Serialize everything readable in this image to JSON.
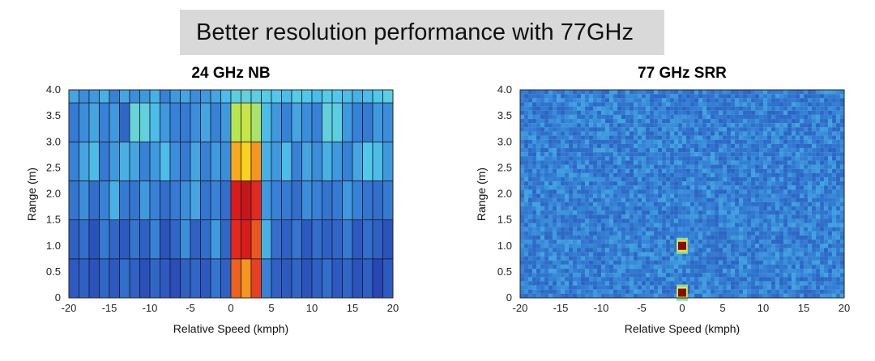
{
  "banner": {
    "text": "Better resolution performance with 77GHz"
  },
  "chart_data": [
    {
      "type": "heatmap",
      "title": "24 GHz NB",
      "xlabel": "Relative Speed (kmph)",
      "ylabel": "Range (m)",
      "xlim": [
        -20,
        20
      ],
      "ylim": [
        0,
        4
      ],
      "xticks": [
        "-20",
        "-15",
        "-10",
        "-5",
        "0",
        "5",
        "10",
        "15",
        "20"
      ],
      "yticks": [
        "0",
        "0.5",
        "1.0",
        "1.5",
        "2.0",
        "2.5",
        "3.0",
        "3.5",
        "4.0"
      ],
      "range_bins": [
        [
          0,
          0.75
        ],
        [
          0.75,
          1.5
        ],
        [
          1.5,
          2.25
        ],
        [
          2.25,
          3.0
        ],
        [
          3.0,
          3.75
        ],
        [
          3.75,
          4.0
        ]
      ],
      "speed_bin_width": 1.25,
      "intensity_scale": [
        0,
        1
      ],
      "intensity_rows": [
        [
          0.18,
          0.2,
          0.16,
          0.22,
          0.18,
          0.24,
          0.2,
          0.15,
          0.22,
          0.18,
          0.14,
          0.2,
          0.22,
          0.18,
          0.26,
          0.2,
          0.85,
          0.8,
          0.88,
          0.3,
          0.2,
          0.18,
          0.22,
          0.16,
          0.2,
          0.24,
          0.18,
          0.22,
          0.16,
          0.2,
          0.12,
          0.18
        ],
        [
          0.2,
          0.24,
          0.16,
          0.28,
          0.22,
          0.18,
          0.26,
          0.2,
          0.3,
          0.16,
          0.22,
          0.32,
          0.2,
          0.24,
          0.34,
          0.22,
          0.9,
          0.92,
          0.86,
          0.38,
          0.24,
          0.2,
          0.26,
          0.18,
          0.24,
          0.2,
          0.22,
          0.28,
          0.18,
          0.24,
          0.2,
          0.16
        ],
        [
          0.26,
          0.32,
          0.24,
          0.3,
          0.38,
          0.28,
          0.26,
          0.34,
          0.3,
          0.24,
          0.28,
          0.32,
          0.36,
          0.26,
          0.3,
          0.24,
          0.92,
          0.94,
          0.9,
          0.34,
          0.3,
          0.28,
          0.24,
          0.32,
          0.3,
          0.26,
          0.28,
          0.34,
          0.3,
          0.26,
          0.24,
          0.28
        ],
        [
          0.3,
          0.36,
          0.4,
          0.28,
          0.34,
          0.38,
          0.36,
          0.3,
          0.34,
          0.4,
          0.32,
          0.28,
          0.36,
          0.3,
          0.34,
          0.32,
          0.78,
          0.74,
          0.8,
          0.38,
          0.34,
          0.4,
          0.3,
          0.36,
          0.32,
          0.38,
          0.34,
          0.3,
          0.36,
          0.42,
          0.4,
          0.34
        ],
        [
          0.28,
          0.32,
          0.36,
          0.3,
          0.34,
          0.22,
          0.5,
          0.48,
          0.4,
          0.34,
          0.3,
          0.28,
          0.32,
          0.36,
          0.3,
          0.34,
          0.62,
          0.64,
          0.6,
          0.4,
          0.34,
          0.3,
          0.36,
          0.32,
          0.3,
          0.48,
          0.46,
          0.34,
          0.3,
          0.28,
          0.34,
          0.32
        ],
        [
          0.36,
          0.32,
          0.34,
          0.38,
          0.3,
          0.36,
          0.32,
          0.34,
          0.38,
          0.3,
          0.34,
          0.36,
          0.32,
          0.34,
          0.36,
          0.4,
          0.46,
          0.48,
          0.46,
          0.44,
          0.42,
          0.4,
          0.44,
          0.42,
          0.4,
          0.44,
          0.42,
          0.4,
          0.38,
          0.4,
          0.42,
          0.46
        ]
      ]
    },
    {
      "type": "heatmap",
      "title": "77 GHz SRR",
      "xlabel": "Relative Speed (kmph)",
      "ylabel": "Range (m)",
      "xlim": [
        -20,
        20
      ],
      "ylim": [
        0,
        4
      ],
      "xticks": [
        "-20",
        "-15",
        "-10",
        "-5",
        "0",
        "5",
        "10",
        "15",
        "20"
      ],
      "yticks": [
        "0",
        "0.5",
        "1.0",
        "1.5",
        "2.0",
        "2.5",
        "3.0",
        "3.5",
        "4.0"
      ],
      "background_intensity": 0.28,
      "grid_cells": [
        80,
        50
      ],
      "hotspots": [
        {
          "speed": 0,
          "range": 1.0,
          "intensity": 1.0
        },
        {
          "speed": 0,
          "range": 0.1,
          "intensity": 1.0
        }
      ]
    }
  ]
}
